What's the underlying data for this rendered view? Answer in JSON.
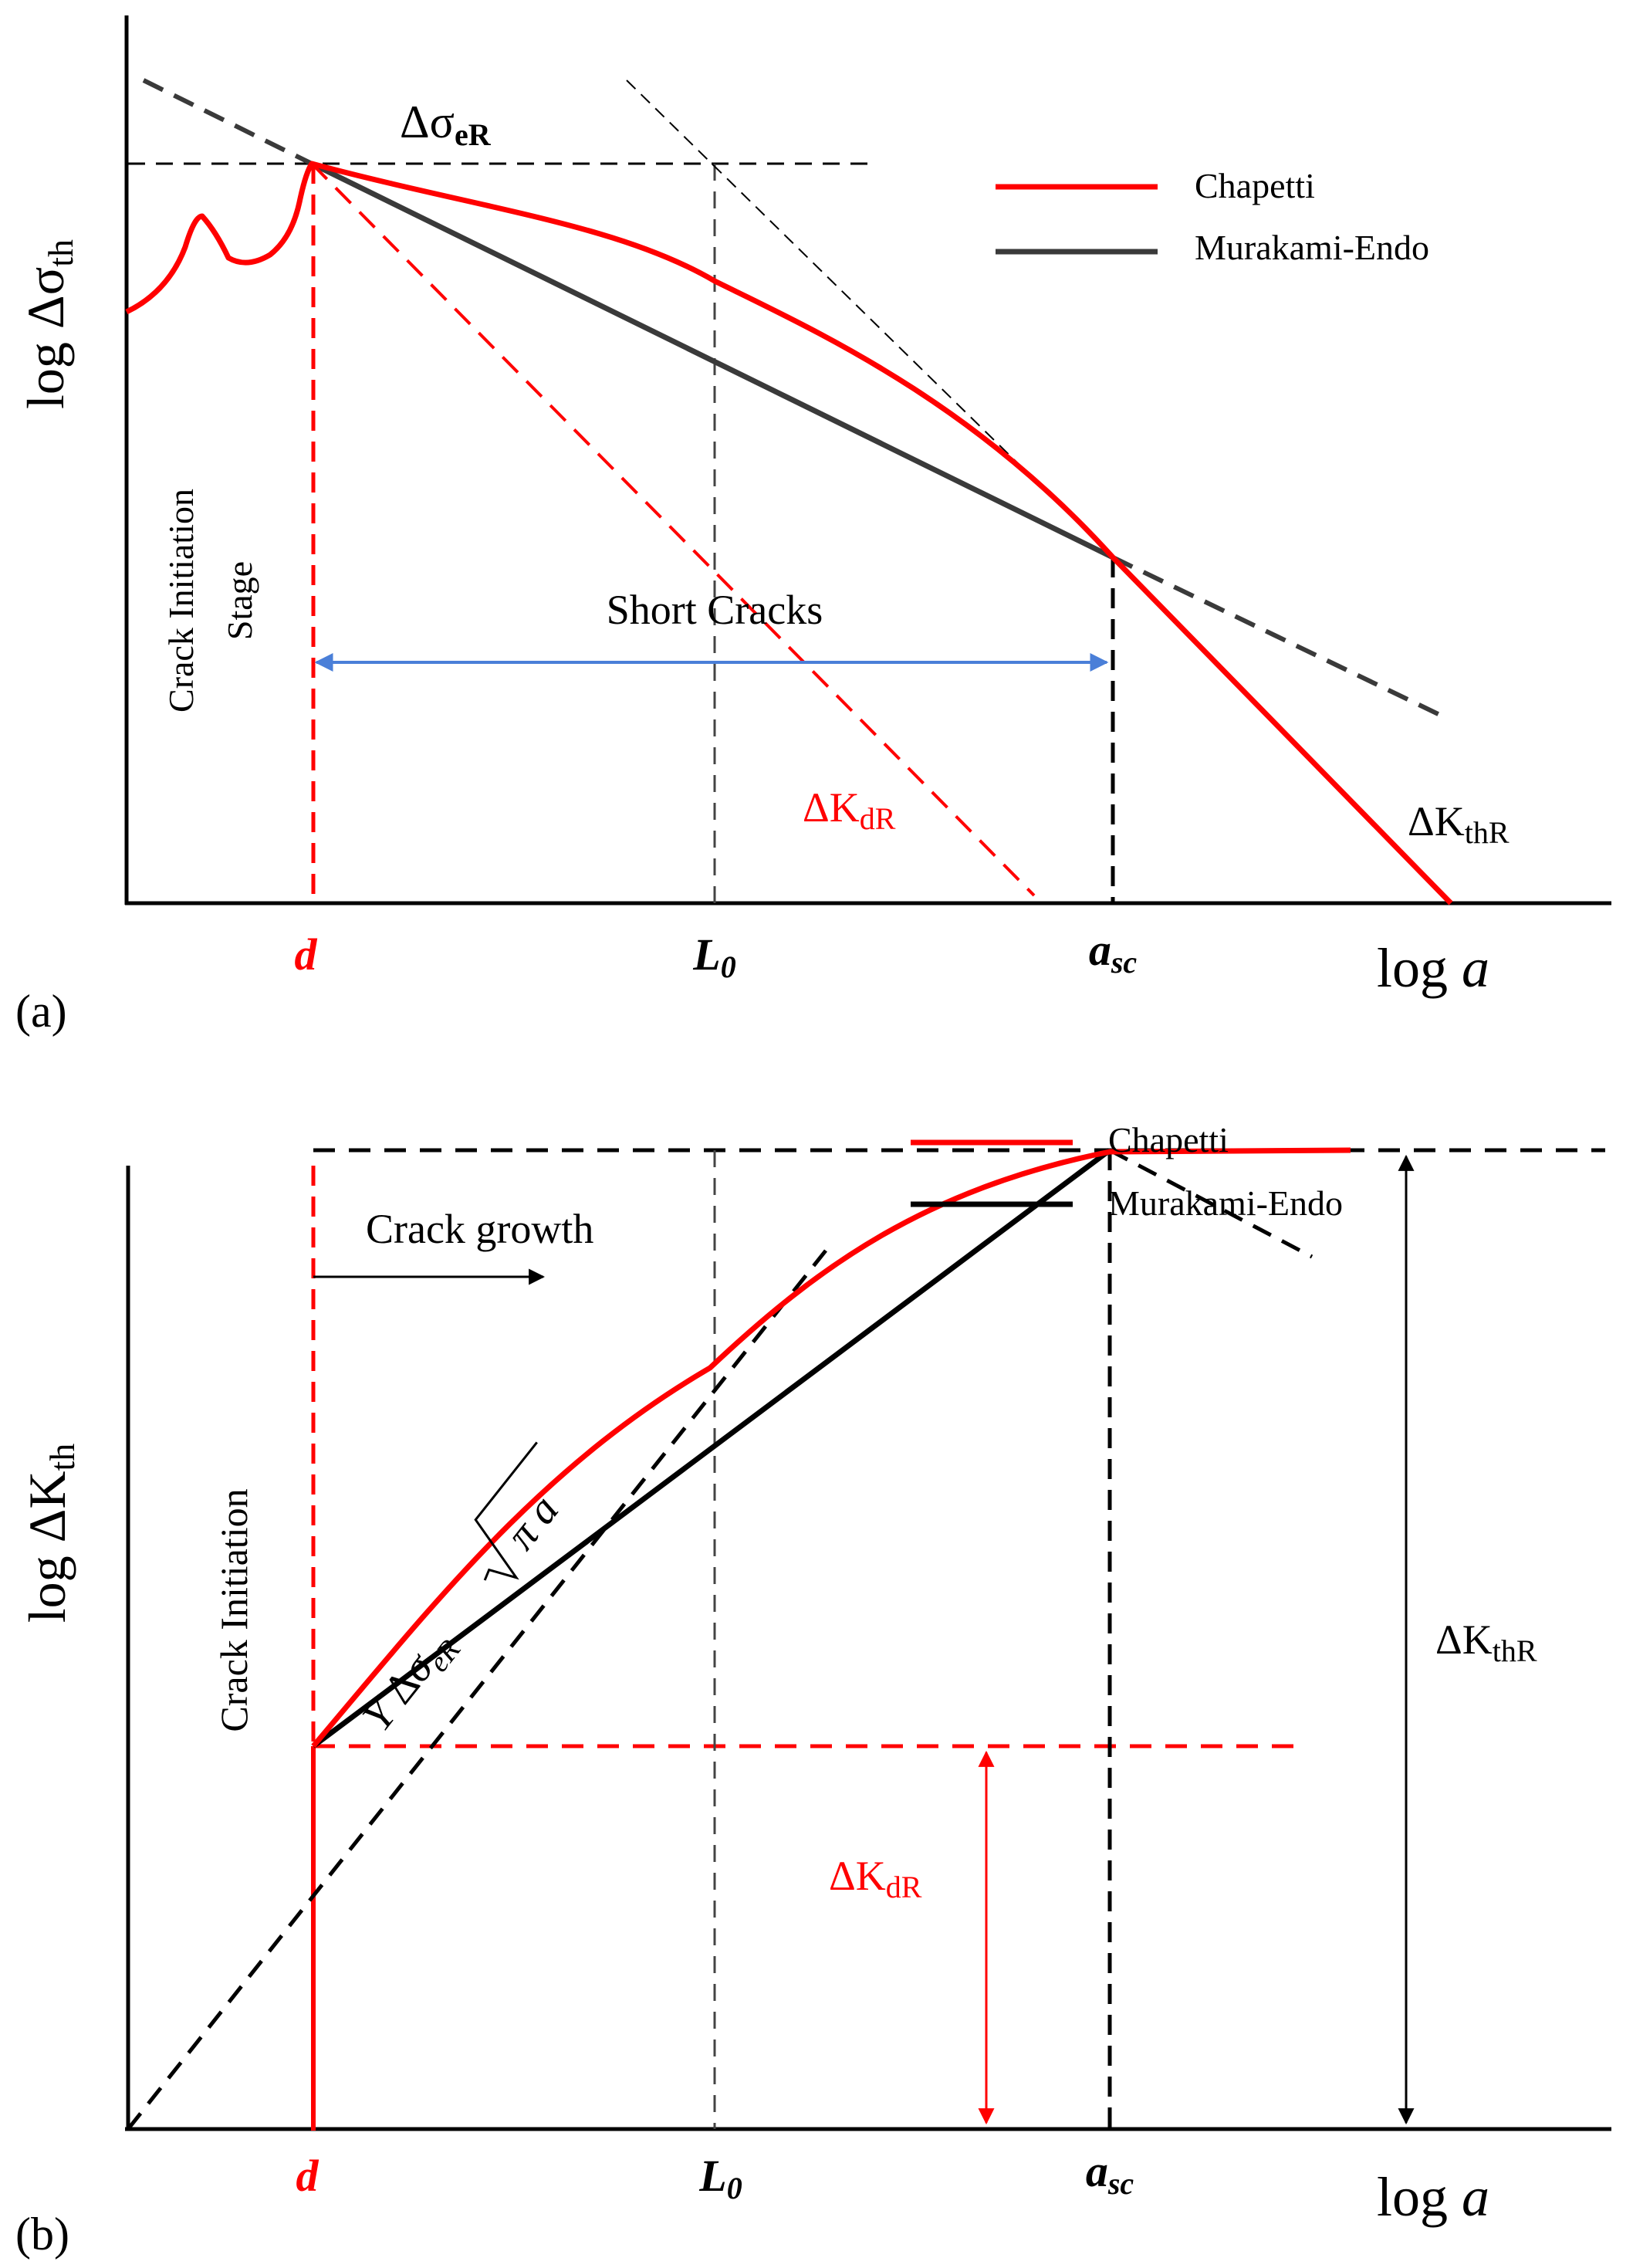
{
  "colors": {
    "chapetti": "#ff0000",
    "murakami_a": "#3a3a3a",
    "murakami_b": "#000000",
    "arrow_blue": "#4a7fd8",
    "axis": "#000000",
    "text": "#000000",
    "red_text": "#ff0000"
  },
  "panel_a": {
    "panel_label": "(a)",
    "ylabel_main": "log Δσ",
    "ylabel_sub": "th",
    "xlabel_main": "log ",
    "xlabel_var": "a",
    "delta_sigma_main": "Δσ",
    "delta_sigma_sub": "eR",
    "crack_initiation_line1": "Crack Initiation",
    "crack_initiation_line2": "Stage",
    "short_cracks": "Short Cracks",
    "kdr_main": "ΔK",
    "kdr_sub": "dR",
    "kthr_main": "ΔK",
    "kthr_sub": "thR",
    "tick_d": "d",
    "tick_l0_main": "L",
    "tick_l0_sub": "0",
    "tick_asc_main": "a",
    "tick_asc_sub": "sc",
    "legend": [
      {
        "label": "Chapetti"
      },
      {
        "label": "Murakami-Endo"
      }
    ]
  },
  "panel_b": {
    "panel_label": "(b)",
    "ylabel_main": "log ΔK",
    "ylabel_sub": "th",
    "xlabel_main": "log ",
    "xlabel_var": "a",
    "crack_growth": "Crack growth",
    "crack_initiation": "Crack Initiation",
    "formula_y": "Y",
    "formula_delta": "Δ",
    "formula_sigma": "σ",
    "formula_sub": "eR",
    "formula_pi_a": "π a",
    "kthr_main": "ΔK",
    "kthr_sub": "thR",
    "kdr_main": "ΔK",
    "kdr_sub": "dR",
    "tick_d": "d",
    "tick_l0_main": "L",
    "tick_l0_sub": "0",
    "tick_asc_main": "a",
    "tick_asc_sub": "sc",
    "legend": [
      {
        "label": "Chapetti"
      },
      {
        "label": "Murakami-Endo"
      }
    ]
  }
}
